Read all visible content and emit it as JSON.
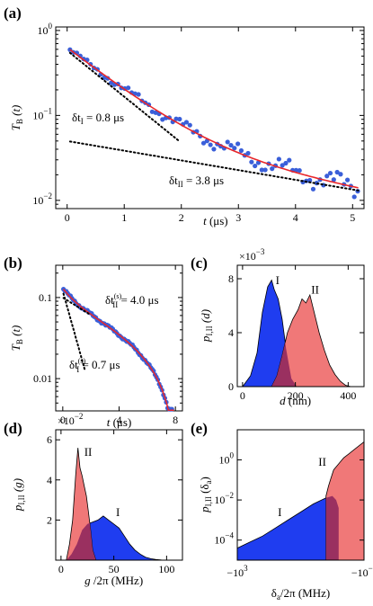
{
  "colors": {
    "data_points": "#3a5fd9",
    "fit": "#e8262a",
    "fill_I": "#1f3df0",
    "fill_II": "#f07878",
    "overlap": "#9a3060"
  },
  "chart_data": [
    {
      "panel": "(a)",
      "type": "scatter",
      "xlabel_var": "t",
      "xlabel_unit": "(μs)",
      "ylabel_main": "T",
      "ylabel_sub": "B",
      "ylabel_arg": "(t)",
      "yscale": "log",
      "xlim": [
        -0.2,
        5.2
      ],
      "ylim": [
        0.008,
        1.1
      ],
      "xticks": [
        "0",
        "1",
        "2",
        "3",
        "4",
        "5"
      ],
      "yticks": [
        {
          "base": "10",
          "exp": "0",
          "value": 1
        },
        {
          "base": "10",
          "exp": "−1",
          "value": 0.1
        },
        {
          "base": "10",
          "exp": "−2",
          "value": 0.01
        }
      ],
      "series": [
        {
          "kind": "points",
          "model": "biexponential",
          "a1": 0.58,
          "tau1": 0.8,
          "a2": 0.05,
          "tau2": 3.8,
          "x_start": 0.05,
          "x_end": 5.1,
          "step": 0.06
        },
        {
          "kind": "fit",
          "a1": 0.58,
          "tau1": 0.8,
          "a2": 0.05,
          "tau2": 3.8,
          "x_start": 0.05,
          "x_end": 5.1
        },
        {
          "kind": "component",
          "a": 0.58,
          "tau": 0.8,
          "x_start": 0.05,
          "x_end": 2.0
        },
        {
          "kind": "component",
          "a": 0.05,
          "tau": 3.8,
          "x_start": 0.05,
          "x_end": 5.1
        }
      ],
      "annotations": [
        {
          "pre": "δt",
          "sub": "I",
          "post": " = 0.8 μs"
        },
        {
          "pre": "δt",
          "sub": "II",
          "post": " = 3.8 μs"
        }
      ]
    },
    {
      "panel": "(b)",
      "type": "scatter",
      "xlabel_var": "t",
      "xlabel_unit": "(μs)",
      "ylabel_main": "T",
      "ylabel_sub": "B",
      "ylabel_arg": "(t)",
      "yscale": "log",
      "xlim": [
        -0.5,
        8.5
      ],
      "ylim": [
        0.004,
        0.25
      ],
      "xticks": [
        "0",
        "4",
        "8"
      ],
      "yticks": [
        {
          "text": "0.1",
          "value": 0.1
        },
        {
          "text": "0.01",
          "value": 0.01
        }
      ],
      "series": [
        {
          "kind": "points",
          "model": "biexponential_cutoff",
          "a1": 0.12,
          "tau1": 0.7,
          "a2": 0.1,
          "tau2": 4.0,
          "x_start": 0.05,
          "x_end": 7.8,
          "step": 0.1
        },
        {
          "kind": "component",
          "a": 0.12,
          "tau": 0.7,
          "x_start": 0.05,
          "x_end": 1.6
        },
        {
          "kind": "component",
          "a": 0.1,
          "tau": 4.0,
          "x_start": 0.05,
          "x_end": 2.0
        }
      ],
      "annotations": [
        {
          "pre": "δt",
          "sub": "II",
          "sup": "(s)",
          "post": " = 4.0 μs"
        },
        {
          "pre": "δt",
          "sub": "I",
          "sup": "(s)",
          "post": " = 0.7 μs"
        }
      ]
    },
    {
      "panel": "(c)",
      "type": "area",
      "xlabel_var": "d",
      "xlabel_unit": "(nm)",
      "ylabel_main": "p",
      "ylabel_sub": "I,II",
      "ylabel_arg": "(d)",
      "scale_factor": {
        "base": "×10",
        "exp": "−3"
      },
      "xlim": [
        -20,
        460
      ],
      "ylim": [
        0,
        9
      ],
      "xticks": [
        {
          "text": "0",
          "value": 0
        },
        {
          "text": "200",
          "value": 200
        },
        {
          "text": "400",
          "value": 400
        }
      ],
      "yticks": [
        {
          "text": "0",
          "value": 0
        },
        {
          "text": "4",
          "value": 4
        },
        {
          "text": "8",
          "value": 8
        }
      ],
      "series": [
        {
          "name": "I",
          "x": [
            0,
            30,
            55,
            75,
            95,
            110,
            120,
            135,
            150,
            165,
            185,
            205
          ],
          "y": [
            0,
            0.8,
            2.5,
            5.5,
            7.4,
            7.9,
            7.2,
            6.5,
            5.0,
            2.8,
            0.6,
            0
          ]
        },
        {
          "name": "II",
          "x": [
            110,
            130,
            150,
            170,
            190,
            210,
            225,
            240,
            255,
            270,
            290,
            310,
            330,
            350,
            370,
            390,
            410
          ],
          "y": [
            0,
            0.8,
            2.3,
            4.0,
            5.0,
            5.7,
            6.5,
            6.2,
            6.8,
            5.6,
            4.0,
            2.7,
            1.6,
            0.9,
            0.4,
            0.1,
            0
          ]
        }
      ]
    },
    {
      "panel": "(d)",
      "type": "area",
      "xlabel_var": "g",
      "xlabel_unit": "/2π (MHz)",
      "ylabel_main": "p",
      "ylabel_sub": "I,II",
      "ylabel_arg": "(g)",
      "scale_factor": {
        "base": "×10",
        "exp": "−2"
      },
      "xlim": [
        -5,
        115
      ],
      "ylim": [
        0,
        6.5
      ],
      "xticks": [
        {
          "text": "0",
          "value": 0
        },
        {
          "text": "50",
          "value": 50
        },
        {
          "text": "100",
          "value": 100
        }
      ],
      "yticks": [
        {
          "text": "2",
          "value": 2
        },
        {
          "text": "4",
          "value": 4
        },
        {
          "text": "6",
          "value": 6
        }
      ],
      "series": [
        {
          "name": "II",
          "x": [
            5,
            8,
            11,
            14,
            16,
            18,
            20,
            22,
            24,
            26,
            28,
            30,
            33
          ],
          "y": [
            0,
            0.8,
            2.0,
            4.3,
            5.6,
            4.6,
            4.2,
            3.7,
            3.2,
            2.4,
            1.5,
            0.5,
            0
          ]
        },
        {
          "name": "I",
          "x": [
            5,
            10,
            15,
            20,
            25,
            30,
            35,
            40,
            45,
            50,
            55,
            60,
            65,
            70,
            75,
            80,
            85,
            90,
            95,
            100
          ],
          "y": [
            0,
            0.3,
            0.8,
            1.5,
            1.8,
            1.9,
            2.0,
            2.2,
            2.0,
            1.8,
            1.6,
            1.2,
            0.8,
            0.5,
            0.3,
            0.15,
            0.07,
            0.03,
            0.01,
            0
          ]
        }
      ]
    },
    {
      "panel": "(e)",
      "type": "area",
      "xlabel_var": "δ",
      "xlabel_sub": "a",
      "xlabel_unit": "/2π (MHz)",
      "ylabel_main": "p",
      "ylabel_sub": "I,II",
      "ylabel_arg": "(δ",
      "ylabel_arg_sub": "a",
      "ylabel_arg_close": ")",
      "xscale": "symlog",
      "yscale": "log",
      "ylim_exp": [
        -5,
        1.5
      ],
      "xticks": [
        {
          "base": "−10",
          "exp": "3",
          "pos": 0.0
        },
        {
          "base": "−10",
          "exp": "−1",
          "pos": 1.0
        }
      ],
      "yticks": [
        {
          "base": "10",
          "exp": "0",
          "value_exp": 0
        },
        {
          "base": "10",
          "exp": "−2",
          "value_exp": -2
        },
        {
          "base": "10",
          "exp": "−4",
          "value_exp": -4
        }
      ],
      "series": [
        {
          "name": "I",
          "pos": [
            0.0,
            0.1,
            0.2,
            0.3,
            0.4,
            0.5,
            0.6,
            0.7,
            0.75,
            0.78,
            0.8,
            0.8
          ],
          "log10_y": [
            -4.4,
            -4.1,
            -3.8,
            -3.4,
            -3.0,
            -2.6,
            -2.2,
            -1.9,
            -1.8,
            -2.0,
            -2.4,
            -5
          ]
        },
        {
          "name": "II",
          "pos": [
            0.7,
            0.7,
            0.72,
            0.74,
            0.76,
            0.8,
            0.84,
            0.88,
            0.92,
            0.96,
            1.0
          ],
          "log10_y": [
            -5,
            -1.8,
            -1.3,
            -0.9,
            -0.5,
            -0.2,
            0.1,
            0.3,
            0.5,
            0.7,
            0.9
          ]
        }
      ],
      "labels": [
        "I",
        "II"
      ]
    }
  ]
}
